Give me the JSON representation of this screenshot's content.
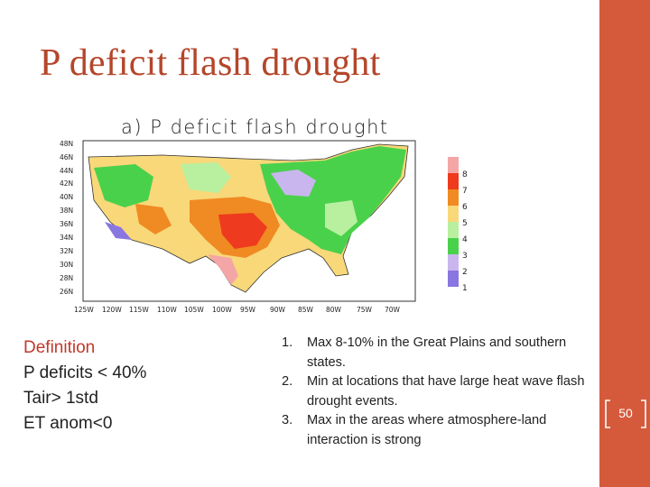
{
  "slide": {
    "title": "P deficit flash drought",
    "page_number": "50"
  },
  "figure": {
    "panel_title": "a) P deficit flash drought",
    "lat_labels": [
      "48N",
      "46N",
      "44N",
      "42N",
      "40N",
      "38N",
      "36N",
      "34N",
      "32N",
      "30N",
      "28N",
      "26N"
    ],
    "lon_labels": [
      "125W",
      "120W",
      "115W",
      "110W",
      "105W",
      "100W",
      "95W",
      "90W",
      "85W",
      "80W",
      "75W",
      "70W"
    ],
    "colorbar": {
      "labels": [
        "8",
        "7",
        "6",
        "5",
        "4",
        "3",
        "2",
        "1"
      ],
      "colors": [
        "#f4a6a6",
        "#ee3a1e",
        "#f08a22",
        "#f8d879",
        "#b8f0a0",
        "#4ad14c",
        "#c9b6ee",
        "#8a76e0"
      ]
    }
  },
  "definition": {
    "heading": "Definition",
    "lines": [
      "P deficits  < 40%",
      "Tair> 1std",
      "ET anom<0"
    ]
  },
  "points": [
    {
      "num": "1.",
      "text": "Max 8-10% in the Great Plains and southern states."
    },
    {
      "num": "2.",
      "text": "Min at locations that have large heat wave flash drought events."
    },
    {
      "num": "3.",
      "text": "Max in the areas where atmosphere-land interaction is strong"
    }
  ]
}
